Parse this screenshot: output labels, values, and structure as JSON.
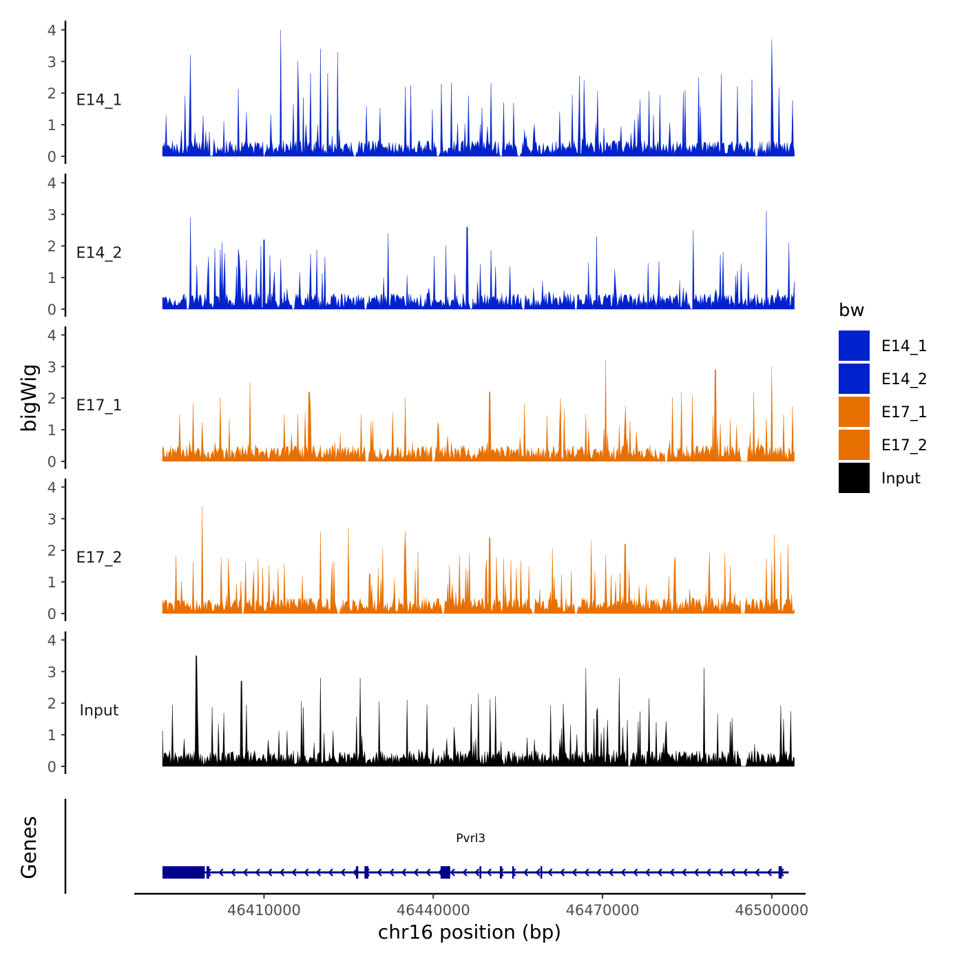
{
  "chart_data": {
    "type": "area",
    "x_axis": {
      "label": "chr16 position (bp)",
      "ticks": [
        46410000,
        46440000,
        46470000,
        46500000
      ],
      "tick_labels": [
        "46410000",
        "46440000",
        "46470000",
        "46500000"
      ],
      "range": [
        46387000,
        46506000
      ],
      "data_start": 46392000,
      "data_end": 46504000
    },
    "y_axis": {
      "label": "bigWig",
      "ticks": [
        0,
        1,
        2,
        3,
        4
      ],
      "tick_labels": [
        "0",
        "1",
        "2",
        "3",
        "4"
      ],
      "range": [
        0,
        4.2
      ]
    },
    "legend": {
      "title": "bw",
      "position": "right",
      "entries": [
        {
          "label": "E14_1",
          "color": "#0022CC"
        },
        {
          "label": "E14_2",
          "color": "#0022CC"
        },
        {
          "label": "E17_1",
          "color": "#E87000"
        },
        {
          "label": "E17_2",
          "color": "#E87000"
        },
        {
          "label": "Input",
          "color": "#000000"
        }
      ]
    },
    "series": [
      {
        "name": "E14_1",
        "color": "#0022CC",
        "max_value": 4.0,
        "peaks": [
          [
            46397000,
            3.2
          ],
          [
            46413000,
            4.0
          ],
          [
            46416000,
            3.0
          ],
          [
            46420000,
            3.4
          ],
          [
            46423000,
            3.3
          ],
          [
            46487000,
            2.5
          ],
          [
            46491000,
            2.6
          ],
          [
            46500000,
            3.7
          ]
        ],
        "gaps": [
          [
            46400400,
            46400900
          ],
          [
            46409800,
            46410200
          ],
          [
            46425800,
            46426300
          ],
          [
            46440500,
            46441000
          ],
          [
            46451800,
            46452300
          ],
          [
            46455000,
            46455500
          ],
          [
            46497000,
            46497500
          ]
        ]
      },
      {
        "name": "E14_2",
        "color": "#0022CC",
        "max_value": 3.1,
        "peaks": [
          [
            46397000,
            2.9
          ],
          [
            46410000,
            2.2
          ],
          [
            46432000,
            2.4
          ],
          [
            46446000,
            2.6
          ],
          [
            46469000,
            2.3
          ],
          [
            46486000,
            2.5
          ],
          [
            46499000,
            3.1
          ],
          [
            46503000,
            2.1
          ]
        ],
        "gaps": [
          [
            46396200,
            46396700
          ],
          [
            46415000,
            46415500
          ],
          [
            46427800,
            46428300
          ],
          [
            46446500,
            46447000
          ],
          [
            46455800,
            46456300
          ],
          [
            46465000,
            46465500
          ],
          [
            46485500,
            46486000
          ]
        ]
      },
      {
        "name": "E17_1",
        "color": "#E87000",
        "max_value": 3.2,
        "peaks": [
          [
            46407500,
            2.5
          ],
          [
            46418000,
            2.2
          ],
          [
            46435000,
            2.0
          ],
          [
            46450000,
            2.2
          ],
          [
            46470500,
            3.2
          ],
          [
            46484000,
            2.2
          ],
          [
            46490000,
            2.9
          ],
          [
            46500000,
            3.0
          ]
        ],
        "gaps": [
          [
            46428000,
            46428500
          ],
          [
            46439800,
            46440300
          ],
          [
            46481000,
            46481500
          ],
          [
            46494500,
            46495800
          ]
        ]
      },
      {
        "name": "E17_2",
        "color": "#E87000",
        "max_value": 3.5,
        "peaks": [
          [
            46399000,
            3.4
          ],
          [
            46420000,
            2.6
          ],
          [
            46425000,
            2.7
          ],
          [
            46435000,
            2.6
          ],
          [
            46450000,
            2.4
          ],
          [
            46468000,
            2.3
          ],
          [
            46474000,
            2.2
          ],
          [
            46500500,
            2.5
          ]
        ],
        "gaps": [
          [
            46406000,
            46406500
          ],
          [
            46423000,
            46423500
          ],
          [
            46441500,
            46442000
          ],
          [
            46457500,
            46458000
          ],
          [
            46465000,
            46465500
          ],
          [
            46494500,
            46495300
          ]
        ]
      },
      {
        "name": "Input",
        "color": "#000000",
        "max_value": 3.5,
        "peaks": [
          [
            46398000,
            3.5
          ],
          [
            46406000,
            2.7
          ],
          [
            46420000,
            2.8
          ],
          [
            46427000,
            2.8
          ],
          [
            46448000,
            2.3
          ],
          [
            46467000,
            3.1
          ],
          [
            46473000,
            2.8
          ],
          [
            46488000,
            3.1
          ]
        ],
        "gaps": [
          [
            46474500,
            46475000
          ],
          [
            46494500,
            46495500
          ]
        ]
      }
    ],
    "genes_track": {
      "label": "Genes",
      "gene_name": "Pvrl3",
      "strand": "-",
      "start": 46392000,
      "end": 46503000,
      "color": "#000088",
      "exons": [
        [
          46392000,
          46399500
        ],
        [
          46399800,
          46400300
        ],
        [
          46426300,
          46426700
        ],
        [
          46427800,
          46428500
        ],
        [
          46441300,
          46443000
        ],
        [
          46448200,
          46448500
        ],
        [
          46451800,
          46452200
        ],
        [
          46454000,
          46454200
        ],
        [
          46459000,
          46459300
        ],
        [
          46501200,
          46501800
        ]
      ]
    }
  }
}
